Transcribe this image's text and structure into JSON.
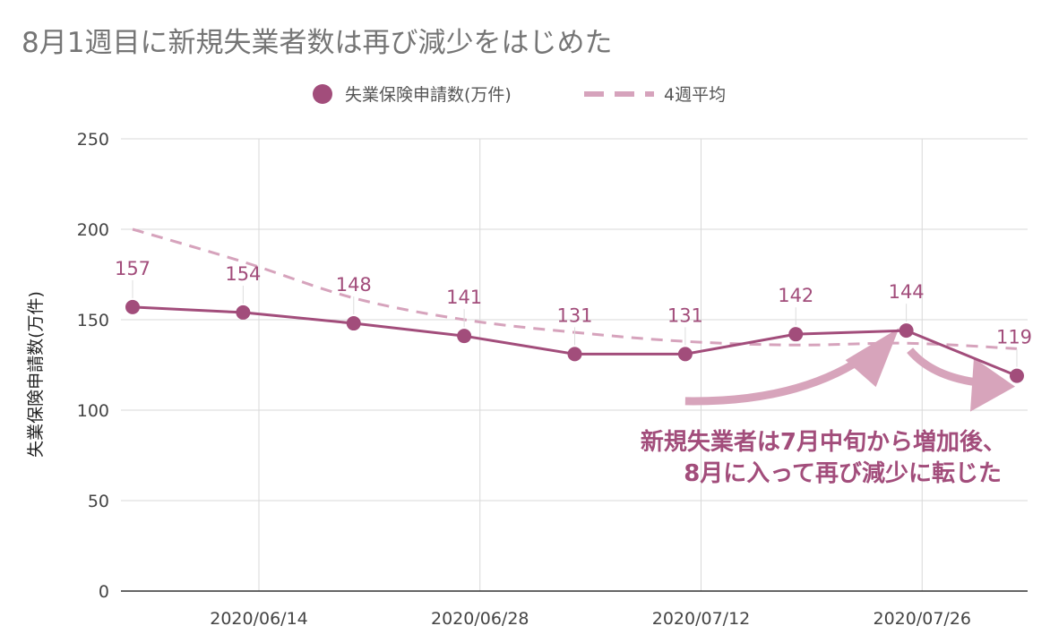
{
  "chart_data": {
    "type": "line",
    "title": "8月1週目に新規失業者数は再び減少をはじめた",
    "ylabel": "失業保険申請数(万件)",
    "xlabel": "",
    "ylim": [
      0,
      250
    ],
    "yticks": [
      0,
      50,
      100,
      150,
      200,
      250
    ],
    "x_dates": [
      "2020-06-06",
      "2020-06-13",
      "2020-06-20",
      "2020-06-27",
      "2020-07-04",
      "2020-07-11",
      "2020-07-18",
      "2020-07-25",
      "2020-08-01"
    ],
    "xrange": [
      "2020-06-06",
      "2020-08-01"
    ],
    "xticks": [
      {
        "date": "2020-06-14",
        "label": "2020/06/14"
      },
      {
        "date": "2020-06-28",
        "label": "2020/06/28"
      },
      {
        "date": "2020-07-12",
        "label": "2020/07/12"
      },
      {
        "date": "2020-07-26",
        "label": "2020/07/26"
      }
    ],
    "series": [
      {
        "name": "失業保険申請数(万件)",
        "style": "solid-with-markers",
        "color": "#a24d7b",
        "values": [
          157,
          154,
          148,
          141,
          131,
          131,
          142,
          144,
          119
        ]
      },
      {
        "name": "4週平均",
        "style": "dashed",
        "color": "#d6a3bc",
        "values": [
          200,
          182,
          162,
          150,
          143,
          138,
          136,
          137,
          134
        ]
      }
    ],
    "data_labels": [
      "157",
      "154",
      "148",
      "141",
      "131",
      "131",
      "142",
      "144",
      "119"
    ],
    "grid": true,
    "legend_position": "top-center",
    "annotation": {
      "lines": [
        "新規失業者は7月中旬から増加後、",
        "8月に入って再び減少に転じた"
      ],
      "color": "#a24d7b"
    },
    "arrow_color": "#d7a4bb"
  }
}
